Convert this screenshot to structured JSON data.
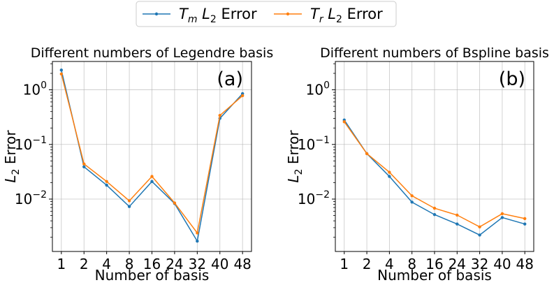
{
  "legend": {
    "placement": "top-center",
    "entries": [
      {
        "sym": "T",
        "sub": "m",
        "rest": "Error",
        "color": "#1f77b4"
      },
      {
        "sym": "T",
        "sub": "r",
        "rest": "Error",
        "color": "#ff7f0e"
      }
    ]
  },
  "chart_data": [
    {
      "type": "line",
      "title": "Different numbers of Legendre basis",
      "annotation": "(a)",
      "xlabel": "Number of basis",
      "ylabel": "L2 Error",
      "yscale": "log",
      "grid": true,
      "categories": [
        "1",
        "2",
        "4",
        "8",
        "16",
        "24",
        "32",
        "40",
        "48"
      ],
      "yticks": [
        {
          "value": 1,
          "label": "10^0"
        },
        {
          "value": 0.1,
          "label": "10^-1"
        },
        {
          "value": 0.01,
          "label": "10^-2"
        }
      ],
      "ylim": [
        0.0011,
        3.3
      ],
      "series": [
        {
          "name": "Tm L2 Error",
          "color": "#1f77b4",
          "values": [
            2.3,
            0.039,
            0.018,
            0.0073,
            0.021,
            0.0083,
            0.0017,
            0.3,
            0.85
          ]
        },
        {
          "name": "Tr L2 Error",
          "color": "#ff7f0e",
          "values": [
            1.95,
            0.044,
            0.021,
            0.0093,
            0.026,
            0.0085,
            0.0024,
            0.34,
            0.78
          ]
        }
      ]
    },
    {
      "type": "line",
      "title": "Different numbers of Bspline basis",
      "annotation": "(b)",
      "xlabel": "Number of basis",
      "ylabel": "L2 Error",
      "yscale": "log",
      "grid": true,
      "categories": [
        "1",
        "2",
        "4",
        "8",
        "16",
        "24",
        "32",
        "40",
        "48"
      ],
      "yticks": [
        {
          "value": 1,
          "label": "10^0"
        },
        {
          "value": 0.1,
          "label": "10^-1"
        },
        {
          "value": 0.01,
          "label": "10^-2"
        }
      ],
      "ylim": [
        0.0011,
        3.3
      ],
      "series": [
        {
          "name": "Tm L2 Error",
          "color": "#1f77b4",
          "values": [
            0.28,
            0.068,
            0.026,
            0.0088,
            0.0052,
            0.0035,
            0.0022,
            0.0046,
            0.0035
          ]
        },
        {
          "name": "Tr L2 Error",
          "color": "#ff7f0e",
          "values": [
            0.26,
            0.068,
            0.031,
            0.0115,
            0.0068,
            0.0051,
            0.0031,
            0.0054,
            0.0044
          ]
        }
      ]
    }
  ]
}
